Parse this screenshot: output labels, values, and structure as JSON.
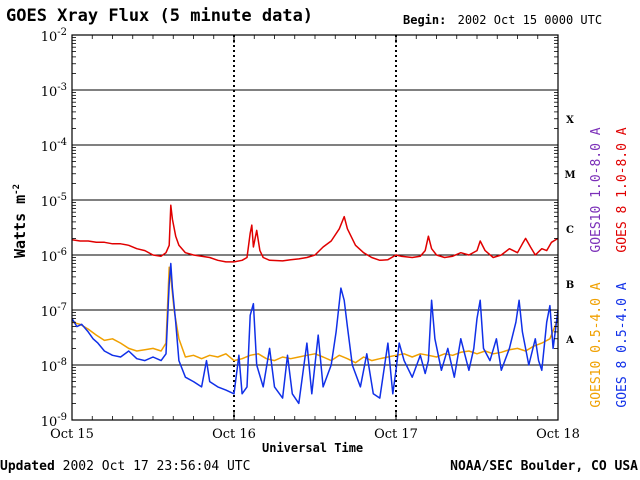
{
  "chart_data": {
    "type": "line",
    "title": "GOES Xray Flux (5 minute data)",
    "begin_label": "Begin:",
    "begin_value": "2002 Oct 15 0000 UTC",
    "ylabel": "Watts m",
    "ylabel_sup": "-2",
    "xlabel": "Universal Time",
    "y_scale": "log",
    "ylim": [
      1e-09,
      0.01
    ],
    "xlim_days": [
      0,
      3
    ],
    "y_ticks": [
      {
        "value": 1e-09,
        "base": "10",
        "exp": "-9"
      },
      {
        "value": 1e-08,
        "base": "10",
        "exp": "-8"
      },
      {
        "value": 1e-07,
        "base": "10",
        "exp": "-7"
      },
      {
        "value": 1e-06,
        "base": "10",
        "exp": "-6"
      },
      {
        "value": 1e-05,
        "base": "10",
        "exp": "-5"
      },
      {
        "value": 0.0001,
        "base": "10",
        "exp": "-4"
      },
      {
        "value": 0.001,
        "base": "10",
        "exp": "-3"
      },
      {
        "value": 0.01,
        "base": "10",
        "exp": "-2"
      }
    ],
    "x_ticks": [
      {
        "day": 0,
        "label": "Oct 15"
      },
      {
        "day": 1,
        "label": "Oct 16"
      },
      {
        "day": 2,
        "label": "Oct 17"
      },
      {
        "day": 3,
        "label": "Oct 18"
      }
    ],
    "flare_classes": [
      {
        "label": "A",
        "value": 3e-08
      },
      {
        "label": "B",
        "value": 3e-07
      },
      {
        "label": "C",
        "value": 3e-06
      },
      {
        "label": "M",
        "value": 3e-05
      },
      {
        "label": "X",
        "value": 0.0003
      }
    ],
    "series": [
      {
        "name": "GOES10 1.0-8.0 A",
        "color": "#7b2fb8",
        "band": "long",
        "points": [],
        "note": "largely hidden beneath GOES 8 long-channel trace"
      },
      {
        "name": "GOES 8 1.0-8.0 A",
        "color": "#e00000",
        "band": "long",
        "points": [
          [
            0.0,
            1.9e-06
          ],
          [
            0.05,
            1.8e-06
          ],
          [
            0.1,
            1.8e-06
          ],
          [
            0.15,
            1.7e-06
          ],
          [
            0.2,
            1.7e-06
          ],
          [
            0.25,
            1.6e-06
          ],
          [
            0.3,
            1.6e-06
          ],
          [
            0.35,
            1.5e-06
          ],
          [
            0.4,
            1.3e-06
          ],
          [
            0.45,
            1.2e-06
          ],
          [
            0.5,
            1e-06
          ],
          [
            0.55,
            9.5e-07
          ],
          [
            0.58,
            1.1e-06
          ],
          [
            0.6,
            1.5e-06
          ],
          [
            0.61,
            8e-06
          ],
          [
            0.62,
            4.5e-06
          ],
          [
            0.64,
            2.2e-06
          ],
          [
            0.66,
            1.5e-06
          ],
          [
            0.7,
            1.1e-06
          ],
          [
            0.75,
            1e-06
          ],
          [
            0.8,
            9.5e-07
          ],
          [
            0.85,
            9e-07
          ],
          [
            0.9,
            8e-07
          ],
          [
            0.95,
            7.5e-07
          ],
          [
            1.0,
            7.5e-07
          ],
          [
            1.05,
            8e-07
          ],
          [
            1.08,
            9e-07
          ],
          [
            1.1,
            2.5e-06
          ],
          [
            1.11,
            3.5e-06
          ],
          [
            1.12,
            1.4e-06
          ],
          [
            1.14,
            2.8e-06
          ],
          [
            1.16,
            1.2e-06
          ],
          [
            1.18,
            9e-07
          ],
          [
            1.22,
            8e-07
          ],
          [
            1.3,
            7.8e-07
          ],
          [
            1.35,
            8.2e-07
          ],
          [
            1.4,
            8.5e-07
          ],
          [
            1.45,
            9e-07
          ],
          [
            1.5,
            1e-06
          ],
          [
            1.55,
            1.4e-06
          ],
          [
            1.6,
            1.8e-06
          ],
          [
            1.65,
            3e-06
          ],
          [
            1.68,
            5e-06
          ],
          [
            1.7,
            3e-06
          ],
          [
            1.75,
            1.5e-06
          ],
          [
            1.8,
            1.1e-06
          ],
          [
            1.85,
            9e-07
          ],
          [
            1.9,
            8e-07
          ],
          [
            1.95,
            8.2e-07
          ],
          [
            2.0,
            1e-06
          ],
          [
            2.03,
            9.5e-07
          ],
          [
            2.1,
            9e-07
          ],
          [
            2.15,
            9.5e-07
          ],
          [
            2.18,
            1.2e-06
          ],
          [
            2.2,
            2.2e-06
          ],
          [
            2.22,
            1.3e-06
          ],
          [
            2.25,
            1e-06
          ],
          [
            2.3,
            9e-07
          ],
          [
            2.35,
            9.5e-07
          ],
          [
            2.4,
            1.1e-06
          ],
          [
            2.45,
            1e-06
          ],
          [
            2.5,
            1.2e-06
          ],
          [
            2.52,
            1.8e-06
          ],
          [
            2.55,
            1.2e-06
          ],
          [
            2.6,
            9e-07
          ],
          [
            2.65,
            1e-06
          ],
          [
            2.7,
            1.3e-06
          ],
          [
            2.75,
            1.1e-06
          ],
          [
            2.78,
            1.6e-06
          ],
          [
            2.8,
            2e-06
          ],
          [
            2.83,
            1.4e-06
          ],
          [
            2.86,
            1e-06
          ],
          [
            2.9,
            1.3e-06
          ],
          [
            2.93,
            1.2e-06
          ],
          [
            2.96,
            1.7e-06
          ],
          [
            3.0,
            2e-06
          ]
        ]
      },
      {
        "name": "GOES10 0.5-4.0 A",
        "color": "#f0a000",
        "band": "short",
        "points": [
          [
            0.0,
            6e-08
          ],
          [
            0.05,
            5.5e-08
          ],
          [
            0.1,
            4.5e-08
          ],
          [
            0.15,
            3.5e-08
          ],
          [
            0.2,
            2.8e-08
          ],
          [
            0.25,
            3e-08
          ],
          [
            0.3,
            2.5e-08
          ],
          [
            0.35,
            2e-08
          ],
          [
            0.4,
            1.8e-08
          ],
          [
            0.45,
            1.9e-08
          ],
          [
            0.5,
            2e-08
          ],
          [
            0.55,
            1.8e-08
          ],
          [
            0.58,
            2.5e-08
          ],
          [
            0.6,
            6e-07
          ],
          [
            0.61,
            4e-07
          ],
          [
            0.63,
            1e-07
          ],
          [
            0.66,
            3e-08
          ],
          [
            0.7,
            1.4e-08
          ],
          [
            0.75,
            1.5e-08
          ],
          [
            0.8,
            1.3e-08
          ],
          [
            0.85,
            1.5e-08
          ],
          [
            0.9,
            1.4e-08
          ],
          [
            0.95,
            1.6e-08
          ],
          [
            1.0,
            1.2e-08
          ],
          [
            1.05,
            1.3e-08
          ],
          [
            1.1,
            1.5e-08
          ],
          [
            1.15,
            1.6e-08
          ],
          [
            1.2,
            1.3e-08
          ],
          [
            1.25,
            1.2e-08
          ],
          [
            1.3,
            1.4e-08
          ],
          [
            1.35,
            1.3e-08
          ],
          [
            1.4,
            1.4e-08
          ],
          [
            1.45,
            1.5e-08
          ],
          [
            1.5,
            1.6e-08
          ],
          [
            1.55,
            1.4e-08
          ],
          [
            1.6,
            1.2e-08
          ],
          [
            1.65,
            1.5e-08
          ],
          [
            1.7,
            1.3e-08
          ],
          [
            1.75,
            1.1e-08
          ],
          [
            1.8,
            1.4e-08
          ],
          [
            1.85,
            1.2e-08
          ],
          [
            1.9,
            1.3e-08
          ],
          [
            1.95,
            1.4e-08
          ],
          [
            2.0,
            1.5e-08
          ],
          [
            2.05,
            1.6e-08
          ],
          [
            2.1,
            1.4e-08
          ],
          [
            2.15,
            1.6e-08
          ],
          [
            2.2,
            1.5e-08
          ],
          [
            2.25,
            1.4e-08
          ],
          [
            2.3,
            1.6e-08
          ],
          [
            2.35,
            1.5e-08
          ],
          [
            2.4,
            1.7e-08
          ],
          [
            2.45,
            1.8e-08
          ],
          [
            2.5,
            1.6e-08
          ],
          [
            2.55,
            1.8e-08
          ],
          [
            2.6,
            1.6e-08
          ],
          [
            2.65,
            1.7e-08
          ],
          [
            2.7,
            1.9e-08
          ],
          [
            2.75,
            2e-08
          ],
          [
            2.8,
            1.8e-08
          ],
          [
            2.85,
            2.2e-08
          ],
          [
            2.9,
            2.5e-08
          ],
          [
            2.95,
            3e-08
          ],
          [
            3.0,
            7e-08
          ]
        ]
      },
      {
        "name": "GOES 8 0.5-4.0 A",
        "color": "#1030e8",
        "band": "short",
        "points": [
          [
            0.0,
            7e-08
          ],
          [
            0.03,
            5e-08
          ],
          [
            0.06,
            5.5e-08
          ],
          [
            0.1,
            4e-08
          ],
          [
            0.13,
            3e-08
          ],
          [
            0.16,
            2.5e-08
          ],
          [
            0.2,
            1.8e-08
          ],
          [
            0.25,
            1.5e-08
          ],
          [
            0.3,
            1.4e-08
          ],
          [
            0.35,
            1.8e-08
          ],
          [
            0.4,
            1.3e-08
          ],
          [
            0.45,
            1.2e-08
          ],
          [
            0.5,
            1.4e-08
          ],
          [
            0.55,
            1.2e-08
          ],
          [
            0.58,
            1.6e-08
          ],
          [
            0.6,
            3e-07
          ],
          [
            0.61,
            7e-07
          ],
          [
            0.62,
            2.5e-07
          ],
          [
            0.64,
            6e-08
          ],
          [
            0.66,
            1.2e-08
          ],
          [
            0.7,
            6e-09
          ],
          [
            0.75,
            5e-09
          ],
          [
            0.8,
            4e-09
          ],
          [
            0.83,
            1.2e-08
          ],
          [
            0.85,
            5e-09
          ],
          [
            0.9,
            4e-09
          ],
          [
            0.95,
            3.5e-09
          ],
          [
            1.0,
            3e-09
          ],
          [
            1.03,
            1.5e-08
          ],
          [
            1.05,
            3e-09
          ],
          [
            1.08,
            4e-09
          ],
          [
            1.1,
            8e-08
          ],
          [
            1.12,
            1.3e-07
          ],
          [
            1.14,
            1e-08
          ],
          [
            1.18,
            4e-09
          ],
          [
            1.22,
            2e-08
          ],
          [
            1.25,
            4e-09
          ],
          [
            1.3,
            2.5e-09
          ],
          [
            1.33,
            1.5e-08
          ],
          [
            1.36,
            3e-09
          ],
          [
            1.4,
            2e-09
          ],
          [
            1.45,
            2.5e-08
          ],
          [
            1.48,
            3e-09
          ],
          [
            1.52,
            3.5e-08
          ],
          [
            1.55,
            4e-09
          ],
          [
            1.6,
            1e-08
          ],
          [
            1.63,
            4e-08
          ],
          [
            1.66,
            2.5e-07
          ],
          [
            1.68,
            1.5e-07
          ],
          [
            1.7,
            5e-08
          ],
          [
            1.73,
            1e-08
          ],
          [
            1.78,
            4e-09
          ],
          [
            1.82,
            1.6e-08
          ],
          [
            1.86,
            3e-09
          ],
          [
            1.9,
            2.5e-09
          ],
          [
            1.95,
            2.5e-08
          ],
          [
            1.98,
            3e-09
          ],
          [
            2.0,
            8e-09
          ],
          [
            2.02,
            2.5e-08
          ],
          [
            2.05,
            1.2e-08
          ],
          [
            2.1,
            6e-09
          ],
          [
            2.15,
            1.5e-08
          ],
          [
            2.18,
            7e-09
          ],
          [
            2.2,
            1.2e-08
          ],
          [
            2.22,
            1.5e-07
          ],
          [
            2.24,
            3e-08
          ],
          [
            2.28,
            8e-09
          ],
          [
            2.32,
            2e-08
          ],
          [
            2.36,
            6e-09
          ],
          [
            2.4,
            3e-08
          ],
          [
            2.45,
            8e-09
          ],
          [
            2.48,
            2e-08
          ],
          [
            2.5,
            7e-08
          ],
          [
            2.52,
            1.5e-07
          ],
          [
            2.54,
            2e-08
          ],
          [
            2.58,
            1.2e-08
          ],
          [
            2.62,
            3e-08
          ],
          [
            2.65,
            8e-09
          ],
          [
            2.7,
            2e-08
          ],
          [
            2.74,
            6e-08
          ],
          [
            2.76,
            1.5e-07
          ],
          [
            2.78,
            4e-08
          ],
          [
            2.82,
            1e-08
          ],
          [
            2.86,
            3e-08
          ],
          [
            2.88,
            1.2e-08
          ],
          [
            2.9,
            8e-09
          ],
          [
            2.93,
            6e-08
          ],
          [
            2.95,
            1.2e-07
          ],
          [
            2.97,
            2e-08
          ],
          [
            3.0,
            1e-07
          ]
        ]
      }
    ]
  },
  "footer": {
    "updated_label": "Updated",
    "updated_value": "2002 Oct 17 23:56:04 UTC",
    "source": "NOAA/SEC Boulder, CO USA"
  }
}
